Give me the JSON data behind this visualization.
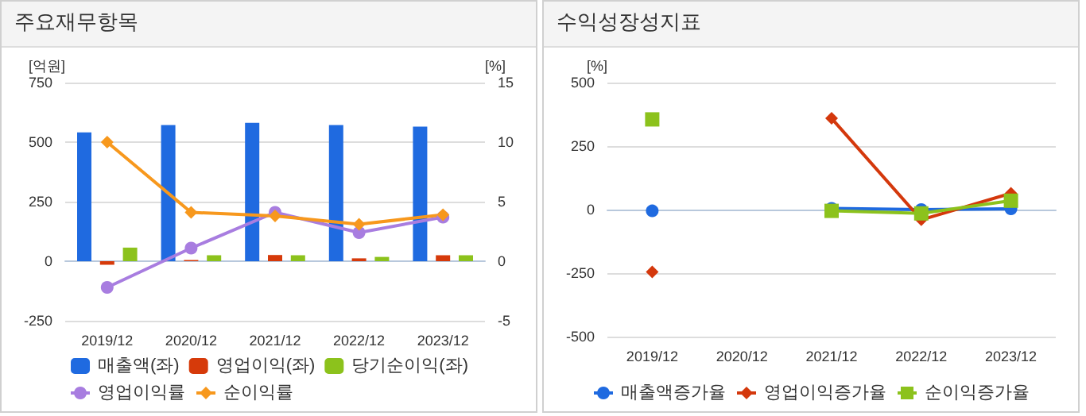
{
  "chart_data": [
    {
      "type": "bar",
      "title": "주요재무항목",
      "ylabel": "[억원]",
      "y2label": "[%]",
      "categories": [
        "2019/12",
        "2020/12",
        "2021/12",
        "2022/12",
        "2023/12"
      ],
      "series": [
        {
          "name": "매출액(좌)",
          "color": "#1f6ae0",
          "values": [
            541,
            572,
            581,
            572,
            565
          ]
        },
        {
          "name": "영업이익(좌)",
          "color": "#d63a0a",
          "values": [
            -15,
            5,
            26,
            12,
            25
          ]
        },
        {
          "name": "당기순이익(좌)",
          "color": "#8cc21c",
          "values": [
            57,
            25,
            25,
            18,
            25
          ]
        },
        {
          "name": "영업이익률",
          "type": "line",
          "axis": "y2",
          "marker": "circle",
          "color": "#a87de0",
          "values": [
            -2.2,
            1.1,
            4.1,
            2.4,
            3.7
          ]
        },
        {
          "name": "순이익률",
          "type": "line",
          "axis": "y2",
          "marker": "diamond",
          "color": "#f7981d",
          "values": [
            10.0,
            4.1,
            3.8,
            3.1,
            3.9
          ]
        }
      ],
      "ylim": [
        -250,
        750
      ],
      "yticks": [
        -250,
        0,
        250,
        500,
        750
      ],
      "y2lim": [
        -5,
        15
      ],
      "y2ticks": [
        -5,
        0,
        5,
        10,
        15
      ],
      "grid": "y",
      "legend": "bottom"
    },
    {
      "type": "line",
      "title": "수익성장성지표",
      "ylabel": "[%]",
      "categories": [
        "2019/12",
        "2020/12",
        "2021/12",
        "2022/12",
        "2023/12"
      ],
      "series": [
        {
          "name": "매출액증가율",
          "marker": "circle",
          "color": "#1f6ae0",
          "values": [
            -5,
            null,
            5,
            0,
            3
          ]
        },
        {
          "name": "영업이익증가율",
          "marker": "diamond",
          "color": "#d4380c",
          "values": [
            -245,
            null,
            359,
            -40,
            64
          ]
        },
        {
          "name": "순이익증가율",
          "marker": "square",
          "color": "#8cc21c",
          "values": [
            355,
            null,
            -5,
            -15,
            35
          ]
        }
      ],
      "ylim": [
        -500,
        500
      ],
      "yticks": [
        -500,
        -250,
        0,
        250,
        500
      ],
      "grid": "y",
      "legend": "bottom"
    }
  ]
}
